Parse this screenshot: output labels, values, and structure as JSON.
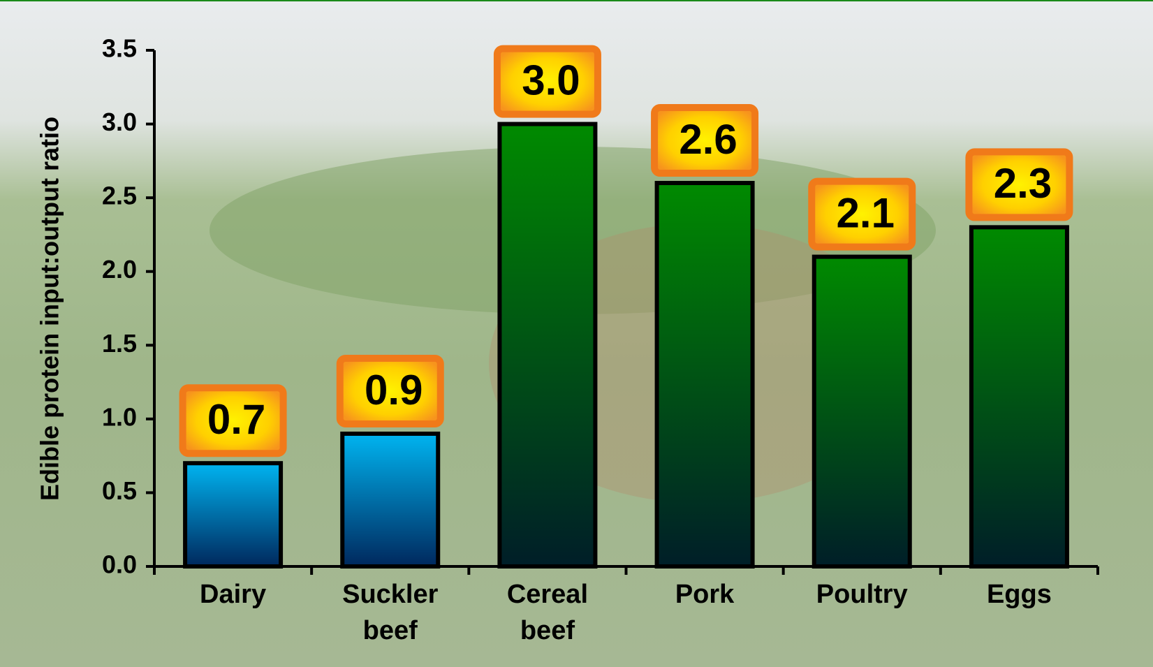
{
  "chart_data": {
    "type": "bar",
    "y_label": "Edible protein input:output ratio",
    "categories": [
      "Dairy",
      "Suckler beef",
      "Cereal beef",
      "Pork",
      "Poultry",
      "Eggs"
    ],
    "values": [
      0.7,
      0.9,
      3.0,
      2.6,
      2.1,
      2.3
    ],
    "value_labels": [
      "0.7",
      "0.9",
      "3.0",
      "2.6",
      "2.1",
      "2.3"
    ],
    "colors": [
      "#00b4f0",
      "#00b4f0",
      "#008a00",
      "#008a00",
      "#008a00",
      "#008a00"
    ],
    "ylim": [
      0,
      3.5
    ],
    "yticks": [
      {
        "value": 0,
        "label": "0.0"
      },
      0.5,
      {
        "value": 1,
        "label": "1.0"
      },
      1.5,
      {
        "value": 2,
        "label": "2.0"
      },
      2.5,
      {
        "value": 3,
        "label": "3.0"
      },
      3.5
    ]
  }
}
